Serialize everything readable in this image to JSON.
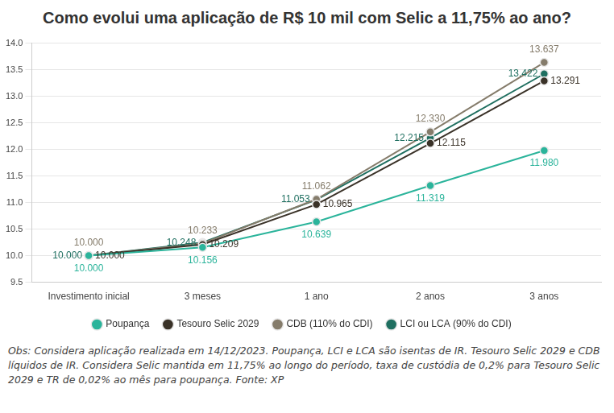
{
  "chart_data": {
    "type": "line",
    "title": "Como evolui uma aplicação de R$ 10 mil com Selic a 11,75% ao ano?",
    "categories": [
      "Investimento inicial",
      "3 meses",
      "1 ano",
      "2 anos",
      "3 anos"
    ],
    "series": [
      {
        "name": "Poupança",
        "color": "#2bb49b",
        "marker": "circle",
        "values": [
          10.0,
          10.156,
          10.639,
          11.319,
          11.98
        ],
        "value_labels": [
          "10.000",
          "10.156",
          "10.639",
          "11.319",
          "11.980"
        ]
      },
      {
        "name": "Tesouro Selic 2029",
        "color": "#3a3228",
        "marker": "circle",
        "values": [
          10.0,
          10.209,
          10.965,
          12.115,
          13.291
        ],
        "value_labels": [
          "10.000",
          "10.209",
          "10.965",
          "12.115",
          "13.291"
        ]
      },
      {
        "name": "CDB (110% do CDI)",
        "color": "#857c6b",
        "marker": "circle",
        "values": [
          10.0,
          10.233,
          11.062,
          12.33,
          13.637
        ],
        "value_labels": [
          "10.000",
          "10.233",
          "11.062",
          "12.330",
          "13.637"
        ]
      },
      {
        "name": "LCI ou LCA (90% do CDI)",
        "color": "#1f6f60",
        "marker": "circle",
        "values": [
          10.0,
          10.248,
          11.053,
          12.215,
          13.422
        ],
        "value_labels": [
          "10.000",
          "10.248",
          "11.053",
          "12.215",
          "13.422"
        ]
      }
    ],
    "ylim": [
      9.5,
      14.0
    ],
    "yticks": [
      9.5,
      {
        "value": 10.0,
        "label": "10.0"
      },
      10.5,
      {
        "value": 11.0,
        "label": "11.0"
      },
      11.5,
      {
        "value": 12.0,
        "label": "12.0"
      },
      12.5,
      {
        "value": 13.0,
        "label": "13.0"
      },
      13.5,
      {
        "value": 14.0,
        "label": "14.0"
      }
    ],
    "grid": true,
    "legend": "bottom",
    "data_labels": true,
    "note": "Obs: Considera aplicação realizada em 14/12/2023. Poupança, LCI e LCA são isentas de IR. Tesouro Selic 2029 e CDB líquidos de IR. Considera Selic mantida em 11,75% ao longo do período, taxa de custódia de 0,2% para Tesouro Selic 2029 e TR de 0,02% ao mês para poupança. Fonte: XP"
  }
}
